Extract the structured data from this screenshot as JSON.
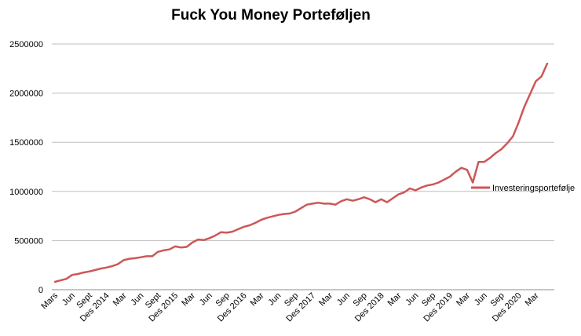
{
  "chart_data": {
    "type": "line",
    "title": "Fuck You Money Porteføljen",
    "xlabel": "",
    "ylabel": "",
    "ylim": [
      0,
      2500000
    ],
    "yticks": [
      0,
      500000,
      1000000,
      1500000,
      2000000,
      2500000
    ],
    "ytick_labels": [
      "0",
      "500000",
      "1000000",
      "1500000",
      "2000000",
      "2500000"
    ],
    "grid": "horizontal",
    "legend_position": "right",
    "x_tick_labels": [
      "Mars",
      "Jun",
      "Sept",
      "Des 2014",
      "Mar",
      "Jun",
      "Sept",
      "Des 2015",
      "Mar",
      "Jun",
      "Sep",
      "Des 2016",
      "Mar",
      "Jun",
      "Sep",
      "Des 2017",
      "Mar",
      "Jun",
      "Sep",
      "Des 2018",
      "Mar",
      "Jun",
      "Sep",
      "Des 2019",
      "Mar",
      "Jun",
      "Sep",
      "Des 2020",
      "Mar"
    ],
    "x_tick_indices": [
      0,
      3,
      6,
      9,
      12,
      15,
      18,
      21,
      24,
      27,
      30,
      33,
      36,
      39,
      42,
      45,
      48,
      51,
      54,
      57,
      60,
      63,
      66,
      69,
      72,
      75,
      78,
      81,
      84
    ],
    "colors": {
      "series": "#cd5756",
      "grid": "#bfbfbf",
      "axis": "#8c8c8c"
    },
    "series": [
      {
        "name": "Investeringsportefølje",
        "values": [
          80000,
          95000,
          110000,
          150000,
          160000,
          175000,
          185000,
          200000,
          215000,
          225000,
          240000,
          260000,
          300000,
          315000,
          320000,
          330000,
          340000,
          340000,
          385000,
          400000,
          410000,
          440000,
          430000,
          435000,
          480000,
          510000,
          505000,
          525000,
          550000,
          585000,
          580000,
          590000,
          615000,
          640000,
          655000,
          680000,
          710000,
          730000,
          745000,
          760000,
          770000,
          775000,
          795000,
          830000,
          865000,
          875000,
          885000,
          875000,
          875000,
          865000,
          900000,
          920000,
          905000,
          920000,
          940000,
          920000,
          890000,
          920000,
          890000,
          930000,
          970000,
          990000,
          1030000,
          1010000,
          1040000,
          1060000,
          1070000,
          1090000,
          1120000,
          1150000,
          1200000,
          1240000,
          1220000,
          1090000,
          1300000,
          1300000,
          1340000,
          1390000,
          1430000,
          1490000,
          1560000,
          1700000,
          1860000,
          1990000,
          2120000,
          2170000,
          2300000
        ]
      }
    ]
  }
}
